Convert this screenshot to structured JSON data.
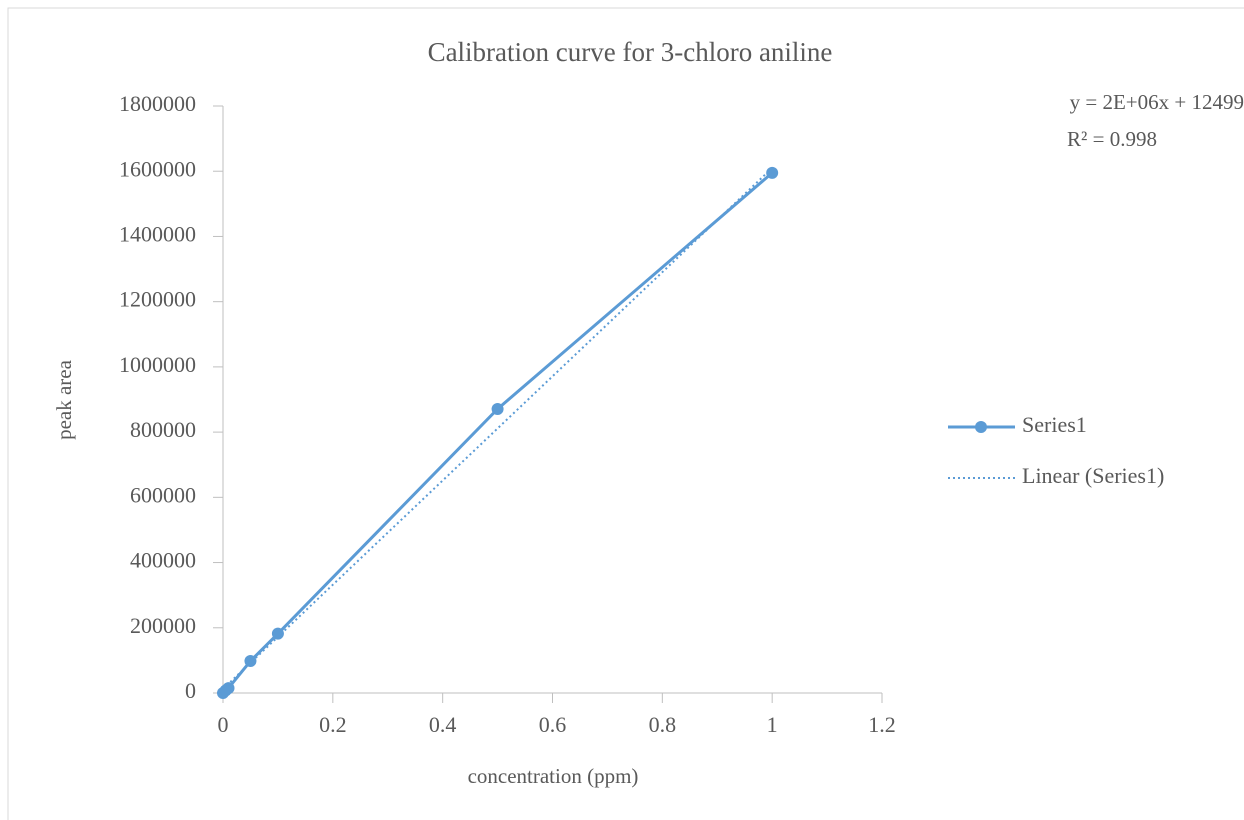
{
  "chart_data": {
    "type": "line",
    "title": "Calibration  curve  for 3-chloro  aniline",
    "xlabel": "concentration  (ppm)",
    "ylabel": "peak  area",
    "series": [
      {
        "name": "Series1",
        "color": "#5b9bd5",
        "x": [
          0,
          0.005,
          0.01,
          0.05,
          0.1,
          0.5,
          1
        ],
        "values": [
          0,
          8000,
          15000,
          98000,
          182000,
          871000,
          1595000
        ]
      }
    ],
    "trendline": {
      "name": "Linear (Series1)",
      "color": "#5b9bd5",
      "x": [
        0,
        1
      ],
      "values": [
        12499,
        1610000
      ],
      "equation": "y = 2E+06x + 12499",
      "r2": "R² = 0.998"
    },
    "xlim": [
      0,
      1.2
    ],
    "xticks": [
      0,
      0.2,
      0.4,
      0.6,
      0.8,
      1,
      1.2
    ],
    "ylim": [
      0,
      1800000
    ],
    "yticks": [
      0,
      200000,
      400000,
      600000,
      800000,
      1000000,
      1200000,
      1400000,
      1600000,
      1800000
    ],
    "grid": false,
    "legend": "right"
  }
}
